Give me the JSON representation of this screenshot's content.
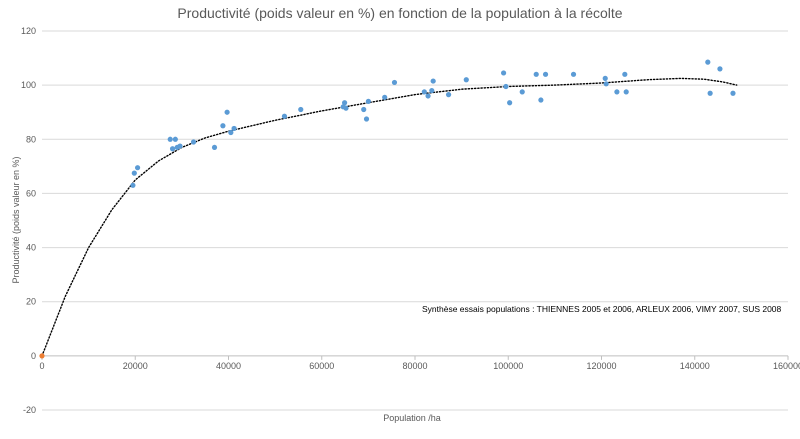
{
  "chart_data": {
    "type": "scatter",
    "title": "Productivité (poids valeur en %) en fonction de la population à la récolte",
    "xlabel": "Population /ha",
    "ylabel": "Productivité (poids valeur en %)",
    "annotation": "Synthèse essais populations : THIENNES 2005 et 2006, ARLEUX 2006, VIMY 2007, SUS 2008",
    "xlim": [
      0,
      160000
    ],
    "ylim": [
      -20,
      120
    ],
    "x_ticks": [
      0,
      20000,
      40000,
      60000,
      80000,
      100000,
      120000,
      140000,
      160000
    ],
    "y_ticks": [
      -20,
      0,
      20,
      40,
      60,
      80,
      100,
      120
    ],
    "x_tick_labels": [
      "0",
      "20000",
      "40000",
      "60000",
      "80000",
      "100000",
      "120000",
      "140000",
      "160000"
    ],
    "y_tick_labels": [
      "-20",
      "0",
      "20",
      "40",
      "60",
      "80",
      "100",
      "120"
    ],
    "grid": "horizontal",
    "colors": {
      "points": "#5b9bd5",
      "origin_point": "#ed7d31",
      "trendline": "#000000",
      "grid": "#d9d9d9",
      "text": "#595959"
    },
    "series": [
      {
        "values": [
          [
            19500,
            63
          ],
          [
            19800,
            67.5
          ],
          [
            20500,
            69.5
          ],
          [
            27500,
            80
          ],
          [
            28000,
            76.5
          ],
          [
            28600,
            80
          ],
          [
            29000,
            77
          ],
          [
            29600,
            77.5
          ],
          [
            32500,
            79
          ],
          [
            37000,
            77
          ],
          [
            38800,
            85
          ],
          [
            39700,
            90
          ],
          [
            40500,
            82.5
          ],
          [
            41200,
            84
          ],
          [
            52000,
            88.5
          ],
          [
            55500,
            91
          ],
          [
            64600,
            92
          ],
          [
            64900,
            93.5
          ],
          [
            65200,
            91.5
          ],
          [
            69000,
            91
          ],
          [
            69600,
            87.5
          ],
          [
            70000,
            94
          ],
          [
            73500,
            95.5
          ],
          [
            75600,
            101
          ],
          [
            82000,
            97.5
          ],
          [
            82800,
            96
          ],
          [
            83600,
            98
          ],
          [
            83900,
            101.5
          ],
          [
            87200,
            96.5
          ],
          [
            91000,
            102
          ],
          [
            99000,
            104.5
          ],
          [
            99500,
            99.5
          ],
          [
            100300,
            93.5
          ],
          [
            103000,
            97.5
          ],
          [
            106000,
            104
          ],
          [
            107000,
            94.5
          ],
          [
            108000,
            104
          ],
          [
            114000,
            104
          ],
          [
            120800,
            102.5
          ],
          [
            121000,
            100.5
          ],
          [
            123300,
            97.5
          ],
          [
            125000,
            104
          ],
          [
            125300,
            97.5
          ],
          [
            142800,
            108.5
          ],
          [
            143300,
            97
          ],
          [
            145400,
            106
          ],
          [
            148200,
            97
          ]
        ]
      },
      {
        "values": [
          [
            0,
            0
          ]
        ]
      }
    ],
    "trendline": {
      "style": "dotted",
      "points": [
        [
          0,
          0
        ],
        [
          5000,
          22
        ],
        [
          10000,
          40
        ],
        [
          15000,
          54
        ],
        [
          20000,
          65
        ],
        [
          25000,
          72
        ],
        [
          30000,
          77
        ],
        [
          35000,
          80.5
        ],
        [
          40000,
          83
        ],
        [
          50000,
          87
        ],
        [
          60000,
          90.5
        ],
        [
          70000,
          93.5
        ],
        [
          80000,
          96.5
        ],
        [
          90000,
          98.5
        ],
        [
          100000,
          99.5
        ],
        [
          110000,
          100
        ],
        [
          120000,
          100.8
        ],
        [
          130000,
          102
        ],
        [
          137000,
          102.5
        ],
        [
          142000,
          102.2
        ],
        [
          146000,
          101.2
        ],
        [
          149000,
          100
        ]
      ]
    }
  }
}
